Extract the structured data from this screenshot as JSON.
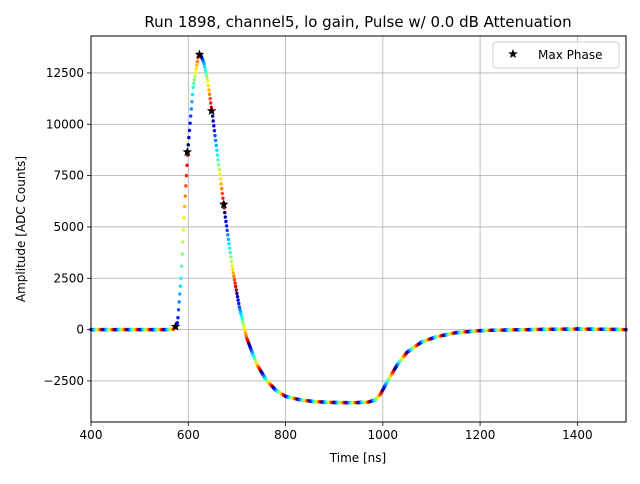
{
  "chart_data": {
    "type": "scatter",
    "title": "Run 1898, channel5, lo gain, Pulse w/ 0.0 dB Attenuation",
    "xlabel": "Time [ns]",
    "ylabel": "Amplitude [ADC Counts]",
    "xlim": [
      400,
      1500
    ],
    "ylim": [
      -4500,
      14300
    ],
    "x_ticks": [
      400,
      600,
      800,
      1000,
      1200,
      1400
    ],
    "y_ticks": [
      -2500,
      0,
      2500,
      5000,
      7500,
      10000,
      12500
    ],
    "x_tick_labels": [
      "400",
      "600",
      "800",
      "1000",
      "1200",
      "1400"
    ],
    "y_tick_labels": [
      "−2500",
      "0",
      "2500",
      "5000",
      "7500",
      "10000",
      "12500"
    ],
    "grid": true,
    "legend_position": "top-right",
    "colormap": "jet",
    "series": [
      {
        "name": "Max Phase",
        "marker": "star",
        "color": "#000000",
        "points": [
          {
            "x": 574,
            "y": 150
          },
          {
            "x": 598,
            "y": 8650
          },
          {
            "x": 623,
            "y": 13400
          },
          {
            "x": 648,
            "y": 10650
          },
          {
            "x": 673,
            "y": 6100
          }
        ]
      }
    ],
    "pulse_trace": {
      "x": [
        400,
        560,
        570,
        578,
        585,
        592,
        600,
        610,
        620,
        625,
        632,
        640,
        650,
        660,
        675,
        690,
        705,
        720,
        740,
        760,
        780,
        800,
        830,
        860,
        900,
        940,
        970,
        985,
        995,
        1010,
        1030,
        1050,
        1080,
        1110,
        1150,
        1200,
        1250,
        1300,
        1350,
        1400,
        1450,
        1500
      ],
      "y": [
        0,
        0,
        30,
        350,
        2500,
        5800,
        9000,
        11800,
        13250,
        13400,
        13000,
        12100,
        10400,
        8500,
        5700,
        3100,
        1100,
        -400,
        -1650,
        -2450,
        -2950,
        -3250,
        -3420,
        -3510,
        -3550,
        -3560,
        -3530,
        -3420,
        -3150,
        -2500,
        -1700,
        -1100,
        -600,
        -350,
        -150,
        -50,
        -20,
        0,
        20,
        30,
        20,
        0
      ]
    }
  }
}
